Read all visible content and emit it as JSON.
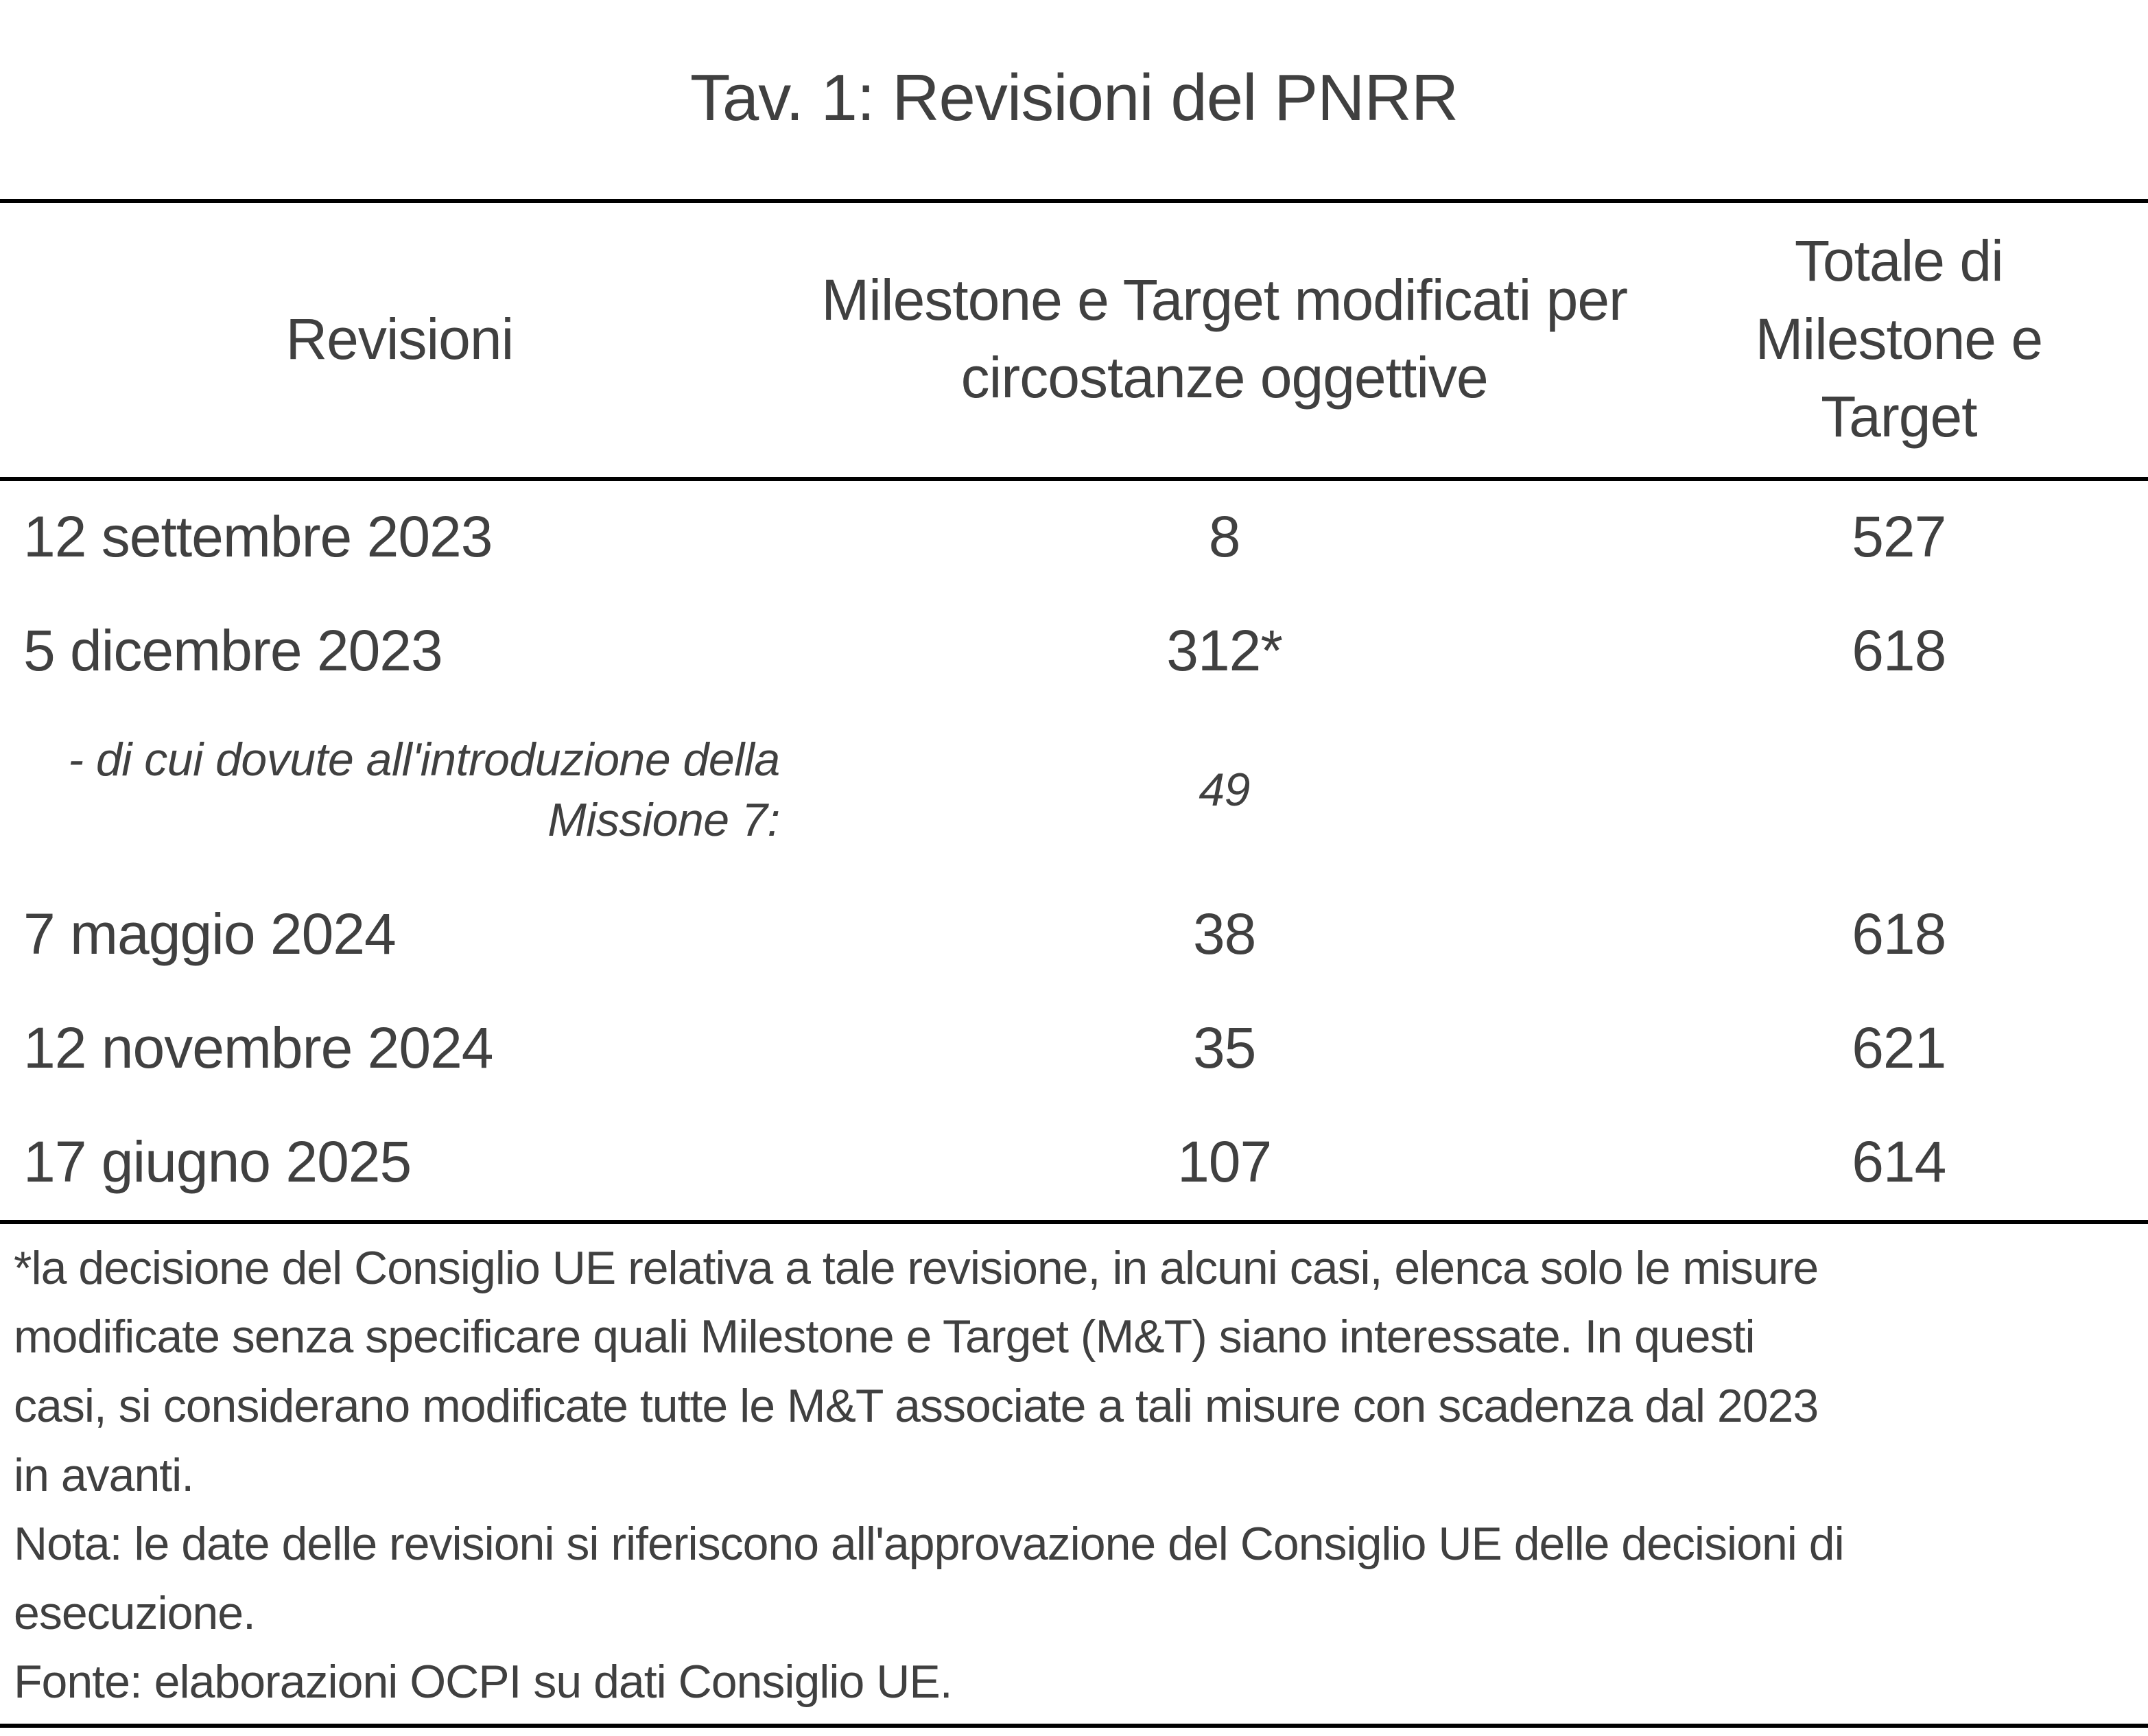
{
  "title": "Tav. 1: Revisioni del PNRR",
  "colors": {
    "text": "#404040",
    "rule_lines": "#000000",
    "background": "#ffffff"
  },
  "table": {
    "columns": [
      "Revisioni",
      "Milestone e Target modificati per circostanze oggettive",
      "Totale di Milestone e Target"
    ],
    "rows": [
      {
        "revision": "12 settembre 2023",
        "modified": "8",
        "total": "527"
      },
      {
        "revision": "5 dicembre 2023",
        "modified": "312*",
        "total": "618"
      },
      {
        "revision": "- di cui dovute all'introduzione della Missione 7:",
        "modified": "49",
        "total": ""
      },
      {
        "revision": "7 maggio 2024",
        "modified": "38",
        "total": "618"
      },
      {
        "revision": "12 novembre 2024",
        "modified": "35",
        "total": "621"
      },
      {
        "revision": "17 giugno 2025",
        "modified": "107",
        "total": "614"
      }
    ]
  },
  "notes": {
    "footnote_lines": [
      "*la decisione del Consiglio UE relativa a tale revisione, in alcuni casi, elenca solo le misure",
      "modificate senza specificare quali Milestone e Target (M&T) siano interessate. In questi",
      "casi, si considerano modificate tutte le M&T associate a tali misure con scadenza dal 2023",
      "in avanti."
    ],
    "nota_lines": [
      "Nota: le date delle revisioni si riferiscono all'approvazione del Consiglio UE delle decisioni di",
      "esecuzione."
    ],
    "fonte": "Fonte: elaborazioni OCPI su dati Consiglio UE."
  }
}
